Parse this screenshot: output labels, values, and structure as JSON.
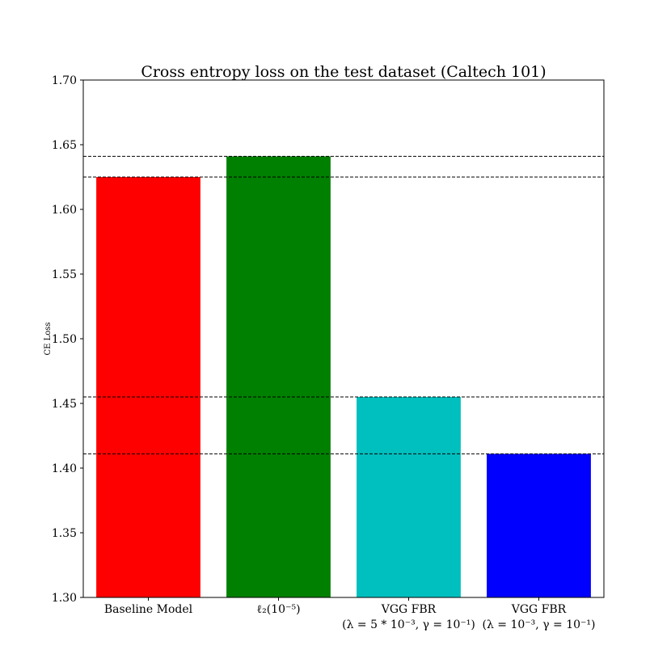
{
  "chart_data": {
    "type": "bar",
    "title": "Cross entropy loss on the test dataset (Caltech 101)",
    "ylabel": "CE Loss",
    "xlabel": "",
    "ylim": [
      1.3,
      1.7
    ],
    "yticks": [
      "1.30",
      "1.35",
      "1.40",
      "1.45",
      "1.50",
      "1.55",
      "1.60",
      "1.65",
      "1.70"
    ],
    "categories": [
      {
        "line1": "Baseline Model",
        "line2": ""
      },
      {
        "line1": "ℓ₂(10⁻⁵)",
        "line2": ""
      },
      {
        "line1": "VGG FBR",
        "line2": "(λ = 5 * 10⁻³, γ = 10⁻¹)"
      },
      {
        "line1": "VGG FBR",
        "line2": "(λ = 10⁻³, γ = 10⁻¹)"
      }
    ],
    "values": [
      1.625,
      1.641,
      1.455,
      1.411
    ],
    "colors": [
      "#ff0000",
      "#008000",
      "#00bfbf",
      "#0000ff"
    ],
    "reference_lines": [
      1.641,
      1.625,
      1.455,
      1.411
    ],
    "grid": false,
    "legend": "none"
  }
}
